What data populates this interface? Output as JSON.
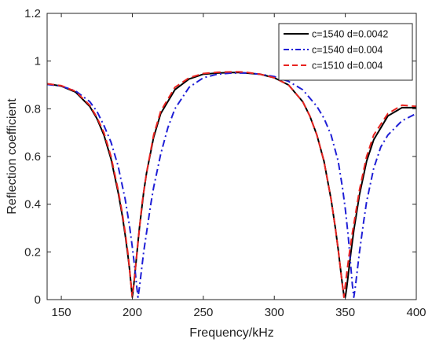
{
  "chart_data": {
    "type": "line",
    "title": "",
    "xlabel": "Frequency/kHz",
    "ylabel": "Reflection coefficient",
    "xlim": [
      140,
      400
    ],
    "ylim": [
      0,
      1.2
    ],
    "xticks": [
      150,
      200,
      250,
      300,
      350,
      400
    ],
    "xtick_labels": [
      "150",
      "200",
      "250",
      "300",
      "350",
      "400"
    ],
    "yticks": [
      0,
      0.2,
      0.4,
      0.6,
      0.8,
      1,
      1.2
    ],
    "ytick_labels": [
      "0",
      "0.2",
      "0.4",
      "0.6",
      "0.8",
      "1",
      "1.2"
    ],
    "grid": false,
    "legend_position": "top-right",
    "series": [
      {
        "name": "c=1540 d=0.0042",
        "color": "#000000",
        "style": "solid",
        "x": [
          140,
          150,
          160,
          170,
          175,
          180,
          185,
          190,
          193,
          195,
          197,
          198,
          199,
          200,
          201,
          202,
          203,
          205,
          208,
          210,
          215,
          220,
          230,
          240,
          250,
          260,
          270,
          275,
          280,
          290,
          300,
          310,
          320,
          325,
          330,
          335,
          340,
          343,
          345,
          346,
          347,
          348,
          349,
          350,
          351,
          352,
          354,
          356,
          360,
          365,
          370,
          380,
          390,
          400
        ],
        "y": [
          0.905,
          0.895,
          0.87,
          0.81,
          0.76,
          0.69,
          0.59,
          0.45,
          0.35,
          0.27,
          0.18,
          0.13,
          0.07,
          0.01,
          0.06,
          0.12,
          0.18,
          0.3,
          0.45,
          0.53,
          0.68,
          0.78,
          0.88,
          0.925,
          0.945,
          0.95,
          0.952,
          0.952,
          0.95,
          0.945,
          0.93,
          0.9,
          0.83,
          0.77,
          0.69,
          0.58,
          0.42,
          0.3,
          0.21,
          0.16,
          0.11,
          0.06,
          0.02,
          0.01,
          0.05,
          0.1,
          0.2,
          0.29,
          0.44,
          0.58,
          0.67,
          0.77,
          0.805,
          0.805
        ]
      },
      {
        "name": "c=1540 d=0.004",
        "color": "#1f1fd6",
        "style": "dashdot",
        "x": [
          140,
          150,
          160,
          170,
          175,
          180,
          185,
          190,
          195,
          198,
          200,
          202,
          203,
          204,
          205,
          206,
          208,
          210,
          213,
          215,
          220,
          225,
          230,
          240,
          250,
          260,
          270,
          280,
          290,
          300,
          310,
          320,
          330,
          335,
          340,
          345,
          348,
          350,
          352,
          353,
          354,
          355,
          356,
          357,
          358,
          360,
          363,
          365,
          370,
          375,
          380,
          390,
          400
        ],
        "y": [
          0.902,
          0.895,
          0.875,
          0.83,
          0.79,
          0.73,
          0.66,
          0.56,
          0.42,
          0.31,
          0.22,
          0.12,
          0.06,
          0.01,
          0.05,
          0.1,
          0.2,
          0.28,
          0.4,
          0.47,
          0.61,
          0.72,
          0.8,
          0.89,
          0.93,
          0.945,
          0.95,
          0.95,
          0.945,
          0.935,
          0.915,
          0.88,
          0.81,
          0.76,
          0.69,
          0.58,
          0.47,
          0.38,
          0.27,
          0.2,
          0.13,
          0.06,
          0.01,
          0.05,
          0.1,
          0.2,
          0.33,
          0.41,
          0.55,
          0.64,
          0.69,
          0.75,
          0.78
        ]
      },
      {
        "name": "c=1510 d=0.004",
        "color": "#e8231f",
        "style": "dashed",
        "x": [
          140,
          150,
          160,
          170,
          175,
          180,
          185,
          190,
          193,
          195,
          197,
          198,
          199,
          200,
          201,
          202,
          204,
          207,
          210,
          215,
          220,
          230,
          240,
          250,
          260,
          270,
          275,
          280,
          290,
          300,
          310,
          320,
          325,
          330,
          335,
          340,
          343,
          345,
          346,
          347,
          348,
          349,
          350,
          351,
          353,
          355,
          360,
          365,
          370,
          380,
          390,
          400
        ],
        "y": [
          0.905,
          0.897,
          0.873,
          0.815,
          0.765,
          0.7,
          0.6,
          0.46,
          0.36,
          0.28,
          0.19,
          0.13,
          0.07,
          0.01,
          0.06,
          0.12,
          0.24,
          0.41,
          0.53,
          0.69,
          0.79,
          0.89,
          0.93,
          0.948,
          0.953,
          0.955,
          0.955,
          0.953,
          0.945,
          0.93,
          0.9,
          0.83,
          0.77,
          0.69,
          0.58,
          0.42,
          0.3,
          0.21,
          0.16,
          0.11,
          0.06,
          0.01,
          0.06,
          0.11,
          0.2,
          0.28,
          0.46,
          0.6,
          0.69,
          0.78,
          0.815,
          0.81
        ]
      }
    ]
  }
}
